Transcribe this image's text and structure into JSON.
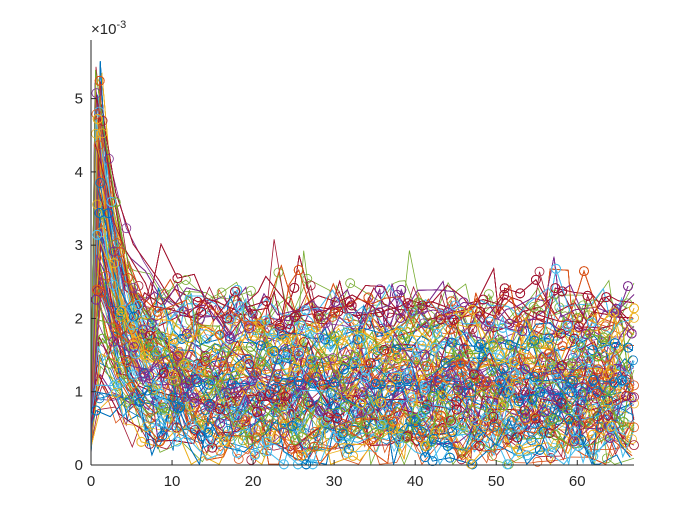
{
  "chart_data": {
    "type": "line",
    "title": "",
    "xlabel": "",
    "ylabel": "",
    "xlim": [
      0,
      67
    ],
    "ylim": [
      0,
      0.0058
    ],
    "y_exponent_label": {
      "base": "×10",
      "exponent": "-3"
    },
    "x_ticks": [
      0,
      10,
      20,
      30,
      40,
      50,
      60
    ],
    "x_tick_labels": [
      "0",
      "10",
      "20",
      "30",
      "40",
      "50",
      "60"
    ],
    "y_ticks": [
      0,
      0.001,
      0.002,
      0.003,
      0.004,
      0.005
    ],
    "y_tick_labels": [
      "0",
      "1",
      "2",
      "3",
      "4",
      "5"
    ],
    "grid": false,
    "legend": "none",
    "marker": "circle",
    "color_order": [
      "#0072BD",
      "#D95319",
      "#EDB120",
      "#7E2F8E",
      "#77AC30",
      "#4DBEEE",
      "#A2142F"
    ],
    "series_count": 300,
    "series_summary": {
      "x_start": 0,
      "x_end": 67,
      "peak_x": 1,
      "peak_y_max": 0.0054,
      "decay_to_x": 10,
      "plateau_y_upper": 0.0022,
      "plateau_y_lower": 0.0002
    }
  }
}
